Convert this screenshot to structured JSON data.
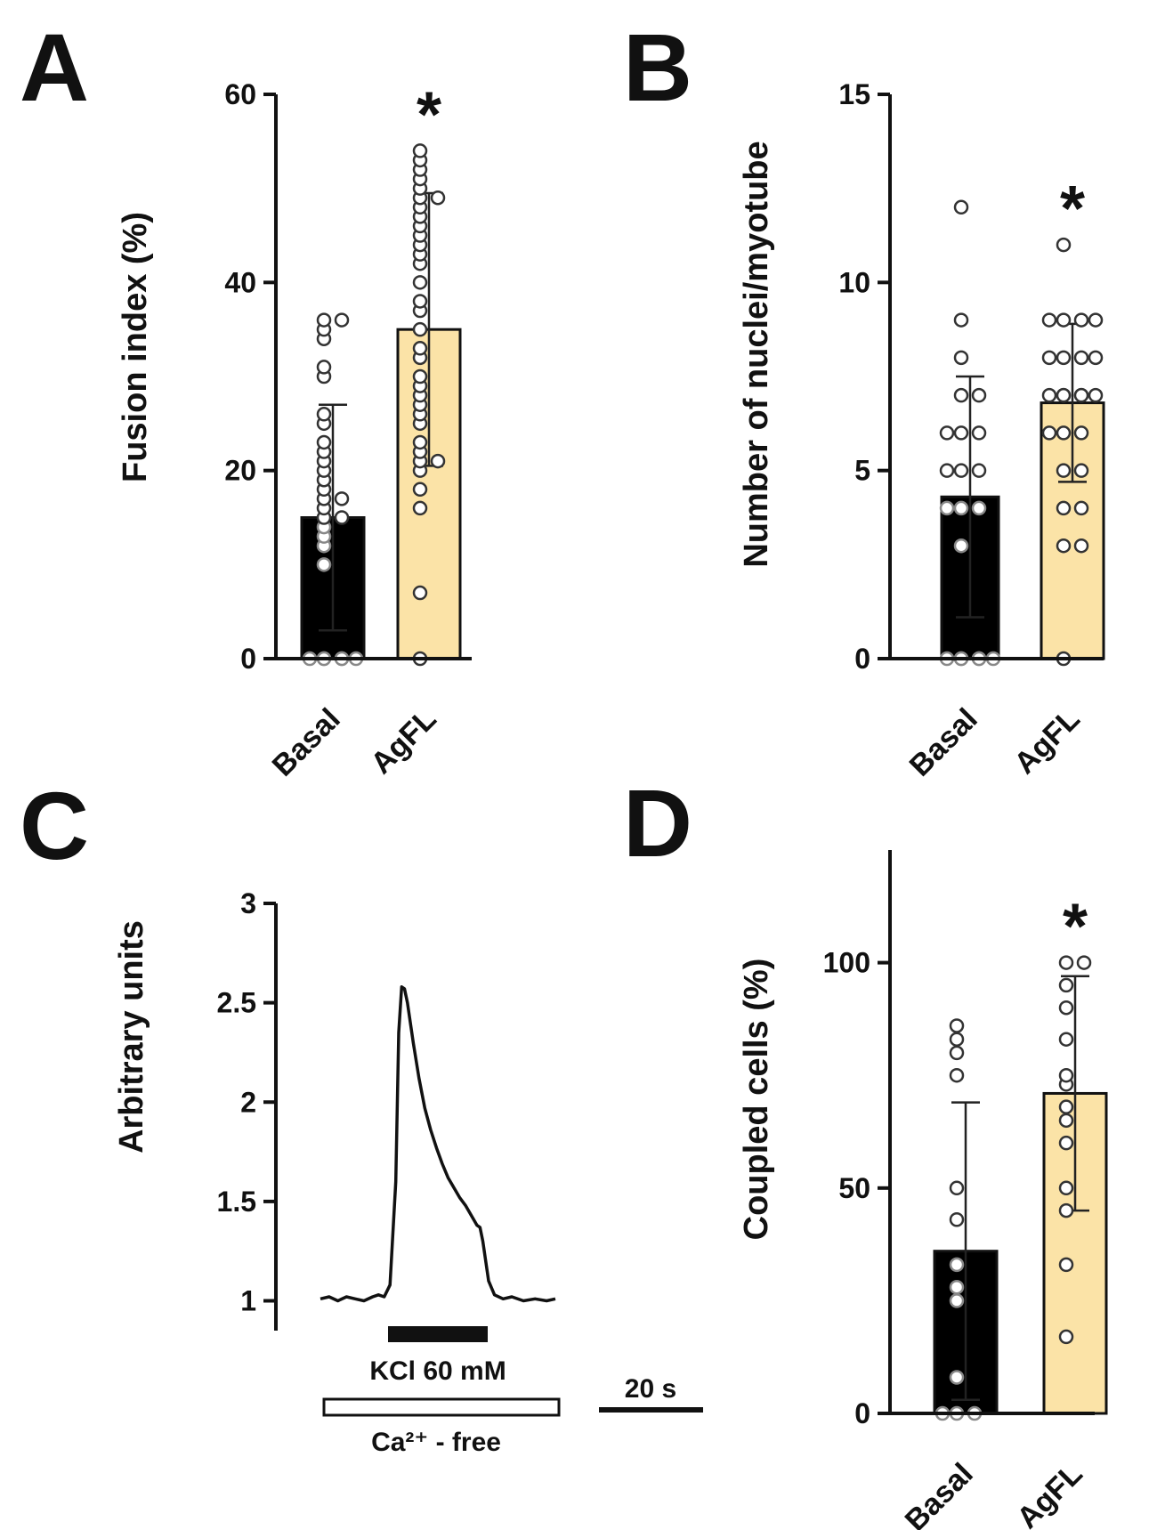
{
  "chart_data": [
    {
      "panel": "A",
      "type": "bar",
      "ylabel": "Fusion index (%)",
      "ylim": [
        0,
        60
      ],
      "yticks": [
        0,
        20,
        40,
        60
      ],
      "categories": [
        "Basal",
        "AgFL"
      ],
      "series": [
        {
          "name": "Fusion index",
          "values": [
            15,
            35
          ],
          "sd": [
            12,
            14.5
          ],
          "colors": [
            "#000000",
            "#fbe3a7"
          ],
          "points": [
            [
              0,
              0,
              0,
              0,
              0,
              0,
              10,
              12,
              13,
              14,
              15,
              15,
              16,
              17,
              17,
              18,
              19,
              20,
              21,
              22,
              23,
              25,
              26,
              30,
              31,
              34,
              35,
              36,
              36
            ],
            [
              0,
              7,
              16,
              18,
              20,
              21,
              21,
              22,
              23,
              25,
              26,
              27,
              28,
              29,
              30,
              32,
              33,
              35,
              37,
              38,
              40,
              42,
              43,
              44,
              45,
              46,
              47,
              48,
              49,
              49,
              50,
              51,
              52,
              53,
              54
            ]
          ]
        }
      ],
      "significance": [
        "",
        "*"
      ]
    },
    {
      "panel": "B",
      "type": "bar",
      "ylabel": "Number of nuclei/myotube",
      "ylim": [
        0,
        15
      ],
      "yticks": [
        0,
        5,
        10,
        15
      ],
      "categories": [
        "Basal",
        "AgFL"
      ],
      "series": [
        {
          "name": "Nuclei per myotube",
          "values": [
            4.3,
            6.8
          ],
          "sd": [
            3.2,
            2.1
          ],
          "colors": [
            "#000000",
            "#fbe3a7"
          ],
          "points": [
            [
              0,
              0,
              0,
              0,
              0,
              0,
              3,
              4,
              4,
              4,
              5,
              5,
              5,
              6,
              6,
              6,
              7,
              7,
              8,
              9,
              12
            ],
            [
              0,
              3,
              3,
              4,
              4,
              5,
              5,
              6,
              6,
              6,
              7,
              7,
              7,
              7,
              7,
              7,
              8,
              8,
              8,
              8,
              9,
              9,
              9,
              9,
              11
            ]
          ]
        }
      ],
      "significance": [
        "",
        "*"
      ]
    },
    {
      "panel": "C",
      "type": "line",
      "ylabel": "Arbitrary units",
      "ylim": [
        0.85,
        3
      ],
      "yticks": [
        1,
        1.5,
        2,
        2.5,
        3
      ],
      "ytick_labels": [
        "1",
        "1.5",
        "2",
        "2.5",
        "3"
      ],
      "x_seconds": [
        0,
        3,
        6,
        9,
        12,
        15,
        18,
        20,
        22,
        24,
        26,
        27,
        28,
        29,
        30,
        32,
        34,
        36,
        38,
        40,
        42,
        44,
        46,
        48,
        50,
        52,
        54,
        55,
        56,
        58,
        60,
        63,
        66,
        70,
        74,
        78,
        81
      ],
      "y": [
        1.01,
        1.02,
        1.0,
        1.02,
        1.01,
        1.0,
        1.02,
        1.03,
        1.02,
        1.08,
        1.6,
        2.35,
        2.58,
        2.57,
        2.5,
        2.3,
        2.12,
        1.97,
        1.86,
        1.77,
        1.69,
        1.62,
        1.57,
        1.52,
        1.48,
        1.43,
        1.38,
        1.37,
        1.3,
        1.1,
        1.03,
        1.01,
        1.02,
        1.0,
        1.01,
        1.0,
        1.01
      ],
      "scale_bar_label": "20 s",
      "stimulus_label": "KCl 60 mM",
      "medium_label": "Ca²⁺ - free"
    },
    {
      "panel": "D",
      "type": "bar",
      "ylabel": "Coupled cells (%)",
      "ylim": [
        0,
        125
      ],
      "yticks": [
        0,
        50,
        100
      ],
      "categories": [
        "Basal",
        "AgFL"
      ],
      "series": [
        {
          "name": "Coupled cells",
          "values": [
            36,
            71
          ],
          "sd": [
            33,
            26
          ],
          "colors": [
            "#000000",
            "#fbe3a7"
          ],
          "points": [
            [
              0,
              0,
              0,
              8,
              25,
              28,
              33,
              43,
              50,
              75,
              80,
              83,
              86
            ],
            [
              17,
              33,
              45,
              50,
              60,
              65,
              68,
              73,
              75,
              83,
              90,
              95,
              100,
              100
            ]
          ]
        }
      ],
      "significance": [
        "",
        "*"
      ]
    }
  ]
}
